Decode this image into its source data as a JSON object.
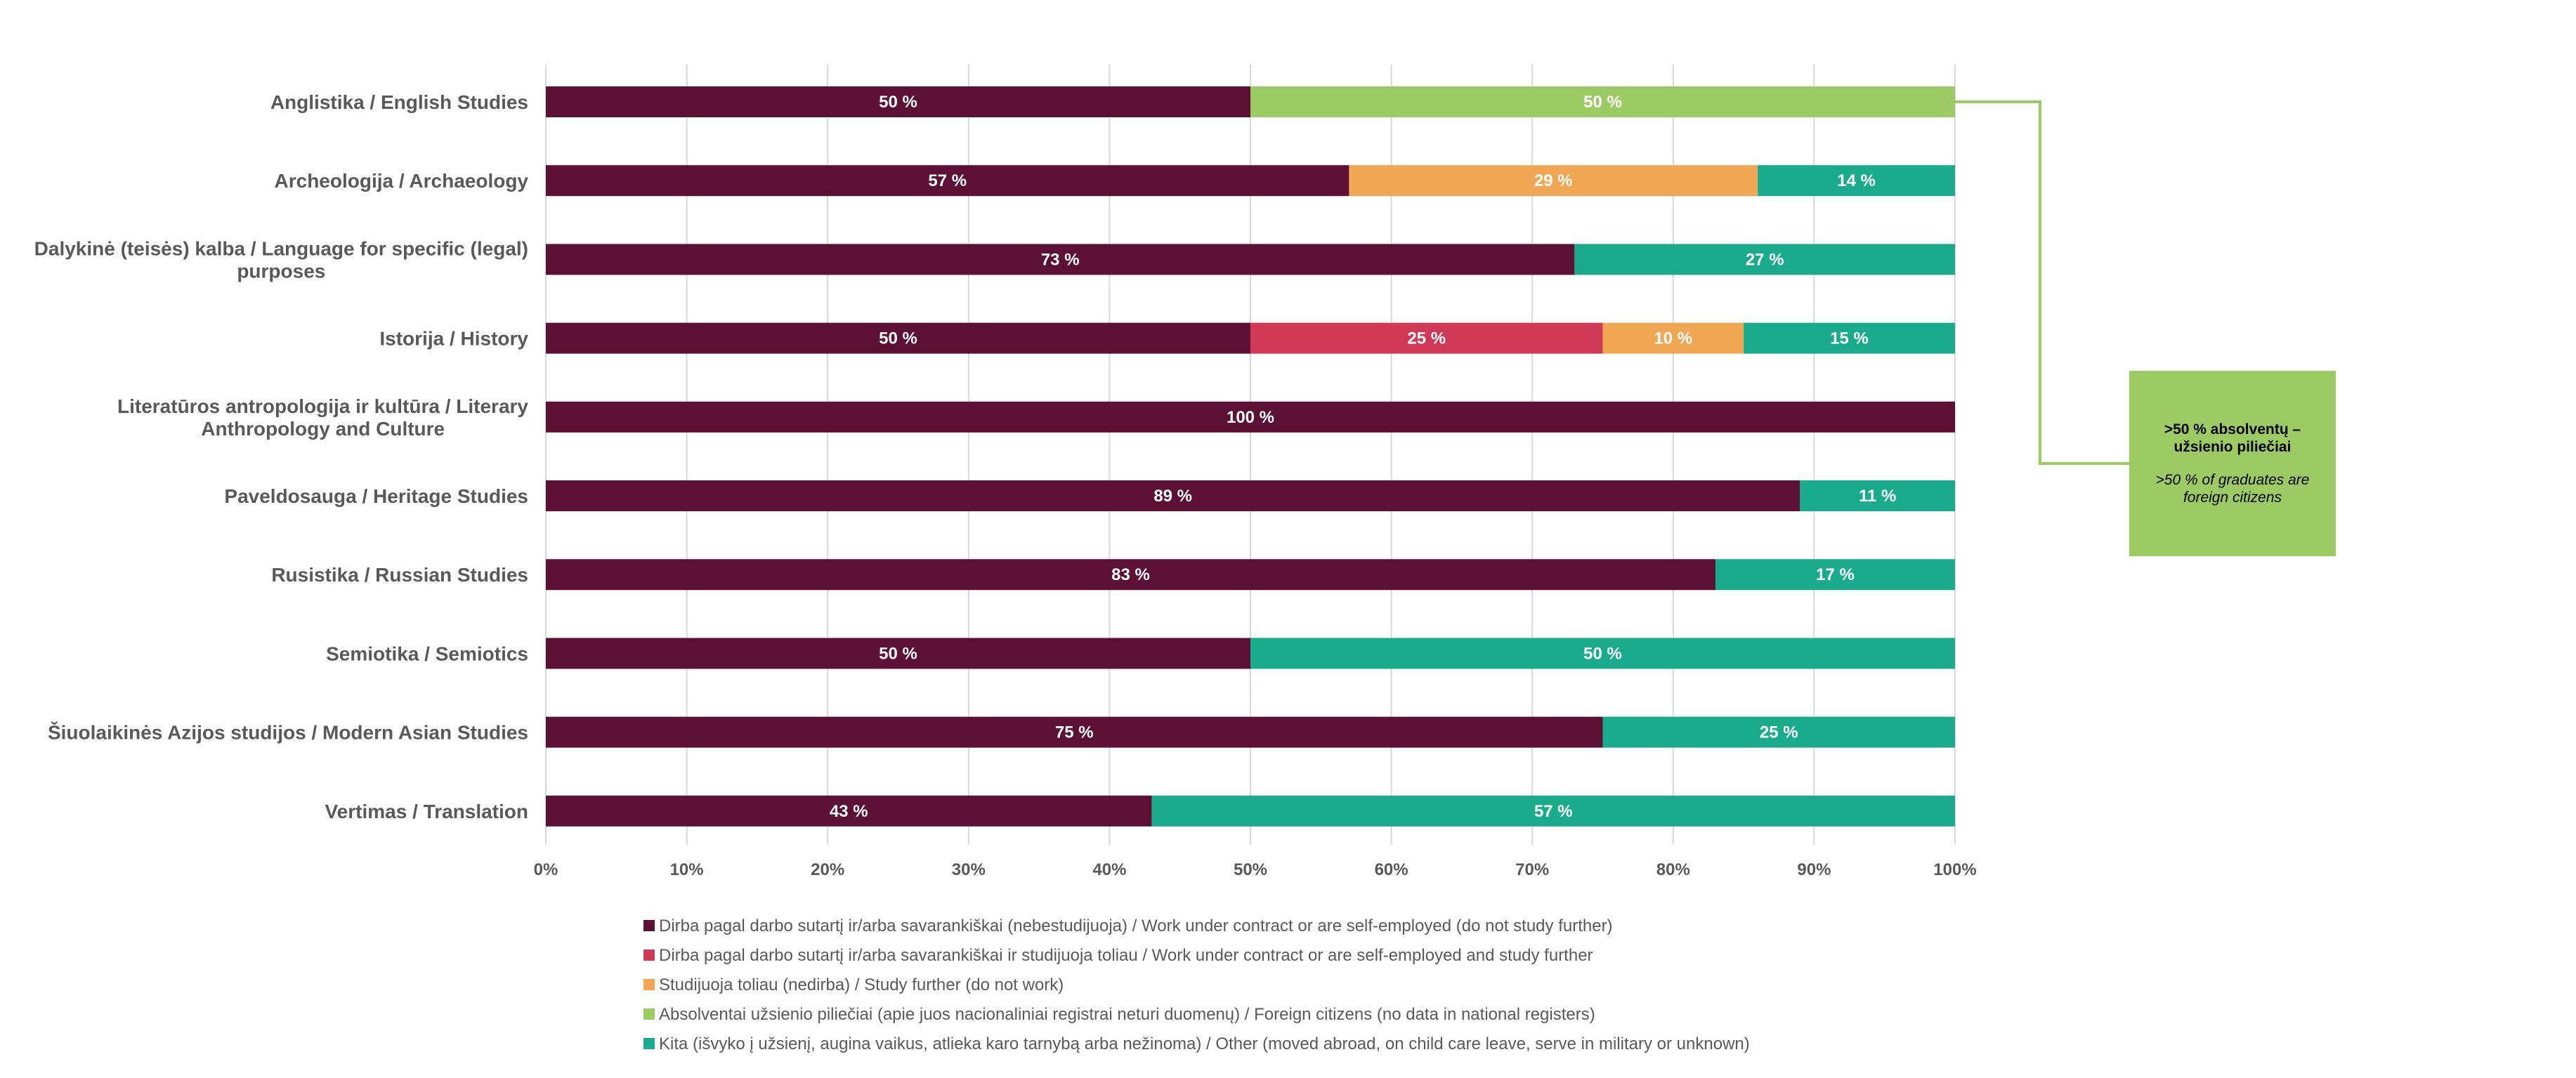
{
  "chart_data": {
    "type": "bar",
    "orientation": "horizontal",
    "stacked": "percent",
    "categories": [
      "Anglistika / English Studies",
      "Archeologija / Archaeology",
      "Dalykinė (teisės) kalba / Language for specific (legal) purposes",
      "Istorija / History",
      "Literatūros antropologija ir kultūra / Literary Anthropology and Culture",
      "Paveldosauga / Heritage Studies",
      "Rusistika / Russian Studies",
      "Semiotika / Semiotics",
      "Šiuolaikinės Azijos studijos / Modern Asian Studies",
      "Vertimas / Translation"
    ],
    "category_lines": [
      [
        "Anglistika / English Studies"
      ],
      [
        "Archeologija / Archaeology"
      ],
      [
        "Dalykinė (teisės) kalba / Language for specific (legal)",
        "purposes"
      ],
      [
        "Istorija / History"
      ],
      [
        "Literatūros antropologija ir kultūra / Literary",
        "Anthropology and Culture"
      ],
      [
        "Paveldosauga / Heritage Studies"
      ],
      [
        "Rusistika / Russian Studies"
      ],
      [
        "Semiotika / Semiotics"
      ],
      [
        "Šiuolaikinės Azijos studijos / Modern Asian Studies"
      ],
      [
        "Vertimas / Translation"
      ]
    ],
    "series": [
      {
        "name": "Dirba pagal darbo sutartį ir/arba savarankiškai (nebestudijuoja) / Work under contract or are self-employed (do not study further)",
        "color": "#5c1034",
        "values": [
          50,
          57,
          73,
          50,
          100,
          89,
          83,
          50,
          75,
          43
        ]
      },
      {
        "name": "Dirba pagal darbo sutartį ir/arba savarankiškai  ir studijuoja toliau / Work under contract or are self-employed and study further",
        "color": "#d13a57",
        "values": [
          0,
          0,
          0,
          25,
          0,
          0,
          0,
          0,
          0,
          0
        ]
      },
      {
        "name": "Studijuoja toliau (nedirba) / Study further (do not work)",
        "color": "#f0a652",
        "values": [
          0,
          29,
          0,
          10,
          0,
          0,
          0,
          0,
          0,
          0
        ]
      },
      {
        "name": "Absolventai užsienio piliečiai (apie juos nacionaliniai registrai neturi duomenų) / Foreign citizens (no data in national registers)",
        "color": "#9ccb64",
        "values": [
          50,
          0,
          0,
          0,
          0,
          0,
          0,
          0,
          0,
          0
        ]
      },
      {
        "name": "Kita (išvyko į užsienį, augina vaikus, atlieka karo tarnybą arba nežinoma) / Other (moved abroad, on child care leave, serve in military or unknown)",
        "color": "#1aab8c",
        "values": [
          0,
          14,
          27,
          15,
          0,
          11,
          17,
          50,
          25,
          57
        ]
      }
    ],
    "data_label_suffix": " %",
    "xlim": [
      0,
      100
    ],
    "x_ticks": [
      "0%",
      "10%",
      "20%",
      "30%",
      "40%",
      "50%",
      "60%",
      "70%",
      "80%",
      "90%",
      "100%"
    ],
    "grid": "vertical",
    "legend": "bottom",
    "title": "",
    "xlabel": "",
    "ylabel": ""
  },
  "callout": {
    "title": ">50 % absolventų – užsienio piliečiai",
    "subtitle": ">50 % of graduates are foreign citizens",
    "color": "#9ccb64",
    "points_to": "Anglistika / English Studies"
  },
  "colors": {
    "axis_text": "#595959",
    "grid": "#d9d9d9"
  }
}
